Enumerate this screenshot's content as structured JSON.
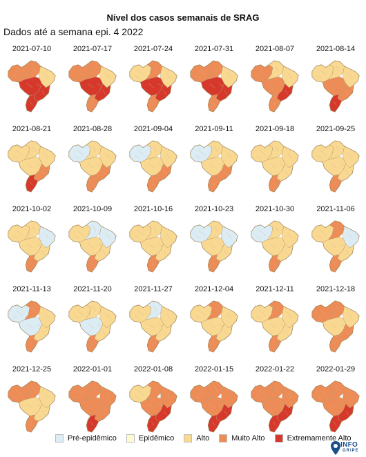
{
  "title": "Nível dos casos semanais de SRAG",
  "subtitle": "Dados até a semana epi. 4 2022",
  "levels": {
    "pre": {
      "label": "Pré-epidêmico",
      "color": "#dcecf5"
    },
    "epi": {
      "label": "Epidêmico",
      "color": "#fffbd1"
    },
    "alto": {
      "label": "Alto",
      "color": "#f9d892"
    },
    "muito": {
      "label": "Muito Alto",
      "color": "#ee8c57"
    },
    "extremo": {
      "label": "Extremamente Alto",
      "color": "#d7382c"
    }
  },
  "legend": [
    "Pré-epidêmico",
    "Epidêmico",
    "Alto",
    "Muito Alto",
    "Extremamente Alto"
  ],
  "panels": [
    {
      "date": "2021-07-10",
      "regions": {
        "northwest": "muito",
        "north": "muito",
        "northeast": "alto",
        "central": "extremo",
        "southeast": "extremo",
        "south": "extremo"
      }
    },
    {
      "date": "2021-07-17",
      "regions": {
        "northwest": "muito",
        "north": "muito",
        "northeast": "alto",
        "central": "extremo",
        "southeast": "extremo",
        "south": "muito"
      }
    },
    {
      "date": "2021-07-24",
      "regions": {
        "northwest": "alto",
        "north": "muito",
        "northeast": "alto",
        "central": "extremo",
        "southeast": "extremo",
        "south": "muito"
      }
    },
    {
      "date": "2021-07-31",
      "regions": {
        "northwest": "muito",
        "north": "muito",
        "northeast": "alto",
        "central": "extremo",
        "southeast": "extremo",
        "south": "muito"
      }
    },
    {
      "date": "2021-08-07",
      "regions": {
        "northwest": "muito",
        "north": "alto",
        "northeast": "alto",
        "central": "muito",
        "southeast": "extremo",
        "south": "muito"
      }
    },
    {
      "date": "2021-08-14",
      "regions": {
        "northwest": "alto",
        "north": "alto",
        "northeast": "alto",
        "central": "muito",
        "southeast": "muito",
        "south": "extremo"
      }
    },
    {
      "date": "2021-08-21",
      "regions": {
        "northwest": "alto",
        "north": "alto",
        "northeast": "alto",
        "central": "alto",
        "southeast": "muito",
        "south": "extremo"
      }
    },
    {
      "date": "2021-08-28",
      "regions": {
        "northwest": "pre",
        "north": "alto",
        "northeast": "alto",
        "central": "alto",
        "southeast": "muito",
        "south": "muito"
      }
    },
    {
      "date": "2021-09-04",
      "regions": {
        "northwest": "pre",
        "north": "alto",
        "northeast": "alto",
        "central": "alto",
        "southeast": "muito",
        "south": "muito"
      }
    },
    {
      "date": "2021-09-11",
      "regions": {
        "northwest": "pre",
        "north": "alto",
        "northeast": "alto",
        "central": "alto",
        "southeast": "muito",
        "south": "muito"
      }
    },
    {
      "date": "2021-09-18",
      "regions": {
        "northwest": "alto",
        "north": "alto",
        "northeast": "alto",
        "central": "alto",
        "southeast": "alto",
        "south": "muito"
      }
    },
    {
      "date": "2021-09-25",
      "regions": {
        "northwest": "alto",
        "north": "alto",
        "northeast": "alto",
        "central": "alto",
        "southeast": "alto",
        "south": "muito"
      }
    },
    {
      "date": "2021-10-02",
      "regions": {
        "northwest": "alto",
        "north": "alto",
        "northeast": "pre",
        "central": "alto",
        "southeast": "alto",
        "south": "muito"
      }
    },
    {
      "date": "2021-10-09",
      "regions": {
        "northwest": "alto",
        "north": "pre",
        "northeast": "pre",
        "central": "alto",
        "southeast": "alto",
        "south": "muito"
      }
    },
    {
      "date": "2021-10-16",
      "regions": {
        "northwest": "alto",
        "north": "alto",
        "northeast": "alto",
        "central": "alto",
        "southeast": "alto",
        "south": "muito"
      }
    },
    {
      "date": "2021-10-23",
      "regions": {
        "northwest": "pre",
        "north": "alto",
        "northeast": "pre",
        "central": "alto",
        "southeast": "alto",
        "south": "muito"
      }
    },
    {
      "date": "2021-10-30",
      "regions": {
        "northwest": "pre",
        "north": "alto",
        "northeast": "alto",
        "central": "alto",
        "southeast": "alto",
        "south": "muito"
      }
    },
    {
      "date": "2021-11-06",
      "regions": {
        "northwest": "alto",
        "north": "muito",
        "northeast": "pre",
        "central": "alto",
        "southeast": "alto",
        "south": "muito"
      }
    },
    {
      "date": "2021-11-13",
      "regions": {
        "northwest": "pre",
        "north": "muito",
        "northeast": "alto",
        "central": "pre",
        "southeast": "alto",
        "south": "muito"
      }
    },
    {
      "date": "2021-11-20",
      "regions": {
        "northwest": "alto",
        "north": "alto",
        "northeast": "alto",
        "central": "pre",
        "southeast": "alto",
        "south": "muito"
      }
    },
    {
      "date": "2021-11-27",
      "regions": {
        "northwest": "alto",
        "north": "pre",
        "northeast": "alto",
        "central": "alto",
        "southeast": "alto",
        "south": "muito"
      }
    },
    {
      "date": "2021-12-04",
      "regions": {
        "northwest": "alto",
        "north": "muito",
        "northeast": "alto",
        "central": "alto",
        "southeast": "alto",
        "south": "muito"
      }
    },
    {
      "date": "2021-12-11",
      "regions": {
        "northwest": "alto",
        "north": "muito",
        "northeast": "alto",
        "central": "alto",
        "southeast": "alto",
        "south": "muito"
      }
    },
    {
      "date": "2021-12-18",
      "regions": {
        "northwest": "muito",
        "north": "muito",
        "northeast": "alto",
        "central": "alto",
        "southeast": "muito",
        "south": "muito"
      }
    },
    {
      "date": "2021-12-25",
      "regions": {
        "northwest": "muito",
        "north": "muito",
        "northeast": "alto",
        "central": "alto",
        "southeast": "alto",
        "south": "muito"
      }
    },
    {
      "date": "2022-01-01",
      "regions": {
        "northwest": "muito",
        "north": "muito",
        "northeast": "muito",
        "central": "muito",
        "southeast": "muito",
        "south": "extremo"
      }
    },
    {
      "date": "2022-01-08",
      "regions": {
        "northwest": "alto",
        "north": "muito",
        "northeast": "muito",
        "central": "muito",
        "southeast": "extremo",
        "south": "extremo"
      }
    },
    {
      "date": "2022-01-15",
      "regions": {
        "northwest": "muito",
        "north": "muito",
        "northeast": "muito",
        "central": "muito",
        "southeast": "extremo",
        "south": "extremo"
      }
    },
    {
      "date": "2022-01-22",
      "regions": {
        "northwest": "muito",
        "north": "muito",
        "northeast": "muito",
        "central": "muito",
        "southeast": "extremo",
        "south": "extremo"
      }
    },
    {
      "date": "2022-01-29",
      "regions": {
        "northwest": "muito",
        "north": "muito",
        "northeast": "muito",
        "central": "muito",
        "southeast": "extremo",
        "south": "extremo"
      }
    }
  ],
  "logo": {
    "word": "INFO",
    "sub": "GRIPE",
    "color": "#1b4f8a"
  }
}
